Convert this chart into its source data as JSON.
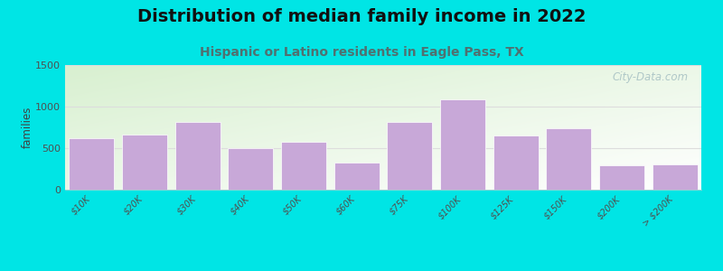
{
  "title": "Distribution of median family income in 2022",
  "subtitle": "Hispanic or Latino residents in Eagle Pass, TX",
  "ylabel": "families",
  "categories": [
    "$10K",
    "$20K",
    "$30K",
    "$40K",
    "$50K",
    "$60K",
    "$75K",
    "$100K",
    "$125K",
    "$150K",
    "$200K",
    "> $200K"
  ],
  "values": [
    620,
    660,
    820,
    500,
    580,
    330,
    820,
    1090,
    650,
    740,
    295,
    305
  ],
  "bar_color": "#c8a8d8",
  "bar_edgecolor": "#ffffff",
  "background_outer": "#00e5e5",
  "bg_topleft": "#d8f0d0",
  "bg_topright": "#e8f8f0",
  "bg_bottom": "#ffffff",
  "ylim": [
    0,
    1500
  ],
  "yticks": [
    0,
    500,
    1000,
    1500
  ],
  "title_fontsize": 14,
  "subtitle_fontsize": 10,
  "subtitle_color": "#507070",
  "watermark": "City-Data.com",
  "watermark_color": "#b0c8c8"
}
